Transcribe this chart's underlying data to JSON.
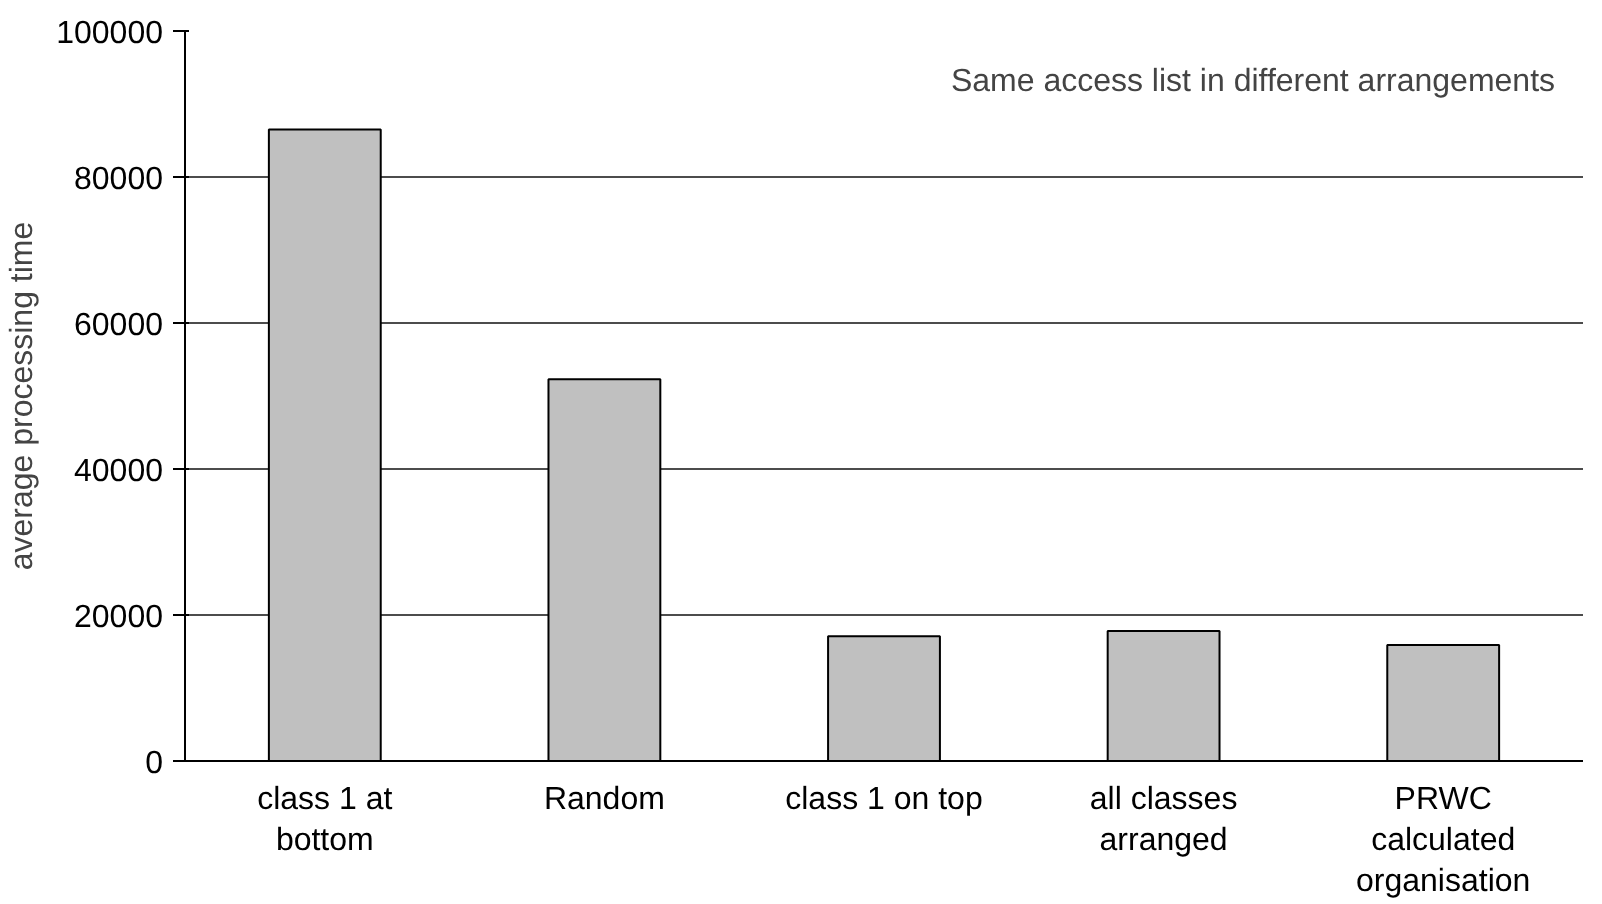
{
  "chart_data": {
    "type": "bar",
    "categories": [
      "class 1 at bottom",
      "Random",
      "class 1 on top",
      "all classes arranged",
      "PRWC calculated organisation"
    ],
    "values": [
      86500,
      52300,
      17100,
      17800,
      15900
    ],
    "color": "#c0c0c0",
    "ylabel": "average processing time",
    "ylim": [
      0,
      100000
    ],
    "yticks": [
      0,
      20000,
      40000,
      60000,
      80000,
      100000
    ],
    "grid": "y",
    "annotations": [
      "Same access list in different arrangements"
    ]
  }
}
